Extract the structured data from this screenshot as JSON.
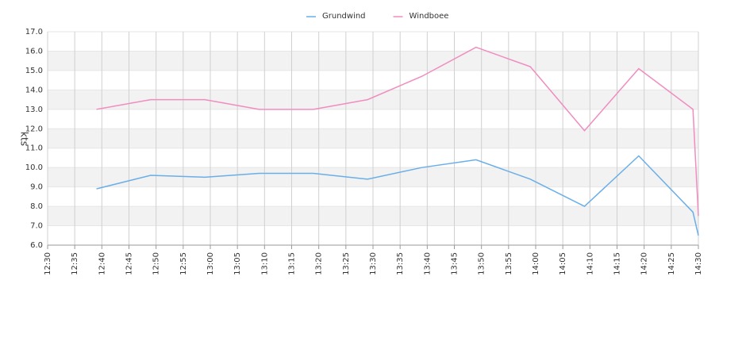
{
  "chart_data": {
    "type": "line",
    "y_label": "kts",
    "x": [
      "12:39",
      "12:49",
      "12:59",
      "13:09",
      "13:19",
      "13:29",
      "13:39",
      "13:49",
      "13:59",
      "14:09",
      "14:19",
      "14:29",
      "14:30"
    ],
    "series": [
      {
        "name": "Grundwind",
        "color": "#6aaee8",
        "values": [
          8.9,
          9.6,
          9.5,
          9.7,
          9.7,
          9.4,
          10.0,
          10.4,
          9.4,
          8.0,
          10.6,
          7.7,
          6.5
        ]
      },
      {
        "name": "Windboee",
        "color": "#f08cc0",
        "values": [
          13.0,
          13.5,
          13.5,
          13.0,
          13.0,
          13.5,
          14.7,
          16.2,
          15.2,
          11.9,
          15.1,
          13.0,
          7.5
        ]
      }
    ],
    "xlim": [
      "12:30",
      "14:30"
    ],
    "xticks": [
      "12:30",
      "12:35",
      "12:40",
      "12:45",
      "12:50",
      "12:55",
      "13:00",
      "13:05",
      "13:10",
      "13:15",
      "13:20",
      "13:25",
      "13:30",
      "13:35",
      "13:40",
      "13:45",
      "13:50",
      "13:55",
      "14:00",
      "14:05",
      "14:10",
      "14:15",
      "14:20",
      "14:25",
      "14:30"
    ],
    "ylim": [
      6,
      17
    ],
    "yticks": [
      {
        "value": 6,
        "label": "6.0"
      },
      {
        "value": 7,
        "label": "7.0"
      },
      {
        "value": 8,
        "label": "8.0"
      },
      {
        "value": 9,
        "label": "9.0"
      },
      {
        "value": 10,
        "label": "10.0"
      },
      {
        "value": 11,
        "label": "11.0"
      },
      {
        "value": 12,
        "label": "12.0"
      },
      {
        "value": 13,
        "label": "13.0"
      },
      {
        "value": 14,
        "label": "14.0"
      },
      {
        "value": 15,
        "label": "15.0"
      },
      {
        "value": 16,
        "label": "16.0"
      },
      {
        "value": 17,
        "label": "17.0"
      }
    ],
    "grid": true,
    "legend": "top"
  }
}
